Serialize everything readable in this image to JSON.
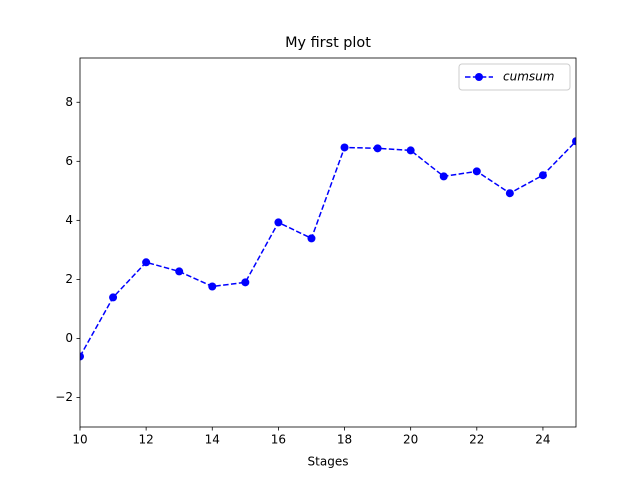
{
  "chart_data": {
    "type": "line",
    "title": "My first plot",
    "xlabel": "Stages",
    "x": [
      10,
      11,
      12,
      13,
      14,
      15,
      16,
      17,
      18,
      19,
      20,
      21,
      22,
      23,
      24,
      25
    ],
    "series": [
      {
        "name": "cumsum",
        "color": "#0000ff",
        "values": [
          -0.61,
          1.39,
          2.58,
          2.27,
          1.76,
          1.9,
          3.93,
          3.39,
          6.47,
          6.44,
          6.37,
          5.49,
          5.66,
          4.92,
          5.53,
          6.68
        ]
      }
    ],
    "xlim": [
      10,
      25
    ],
    "xticks": [
      10,
      12,
      14,
      16,
      18,
      20,
      22,
      24
    ],
    "ylim": [
      -3,
      9.5
    ],
    "yticks": [
      {
        "value": -2,
        "label": "−2"
      },
      0,
      2,
      4,
      6,
      8
    ],
    "legend": "upper right",
    "grid": false
  }
}
